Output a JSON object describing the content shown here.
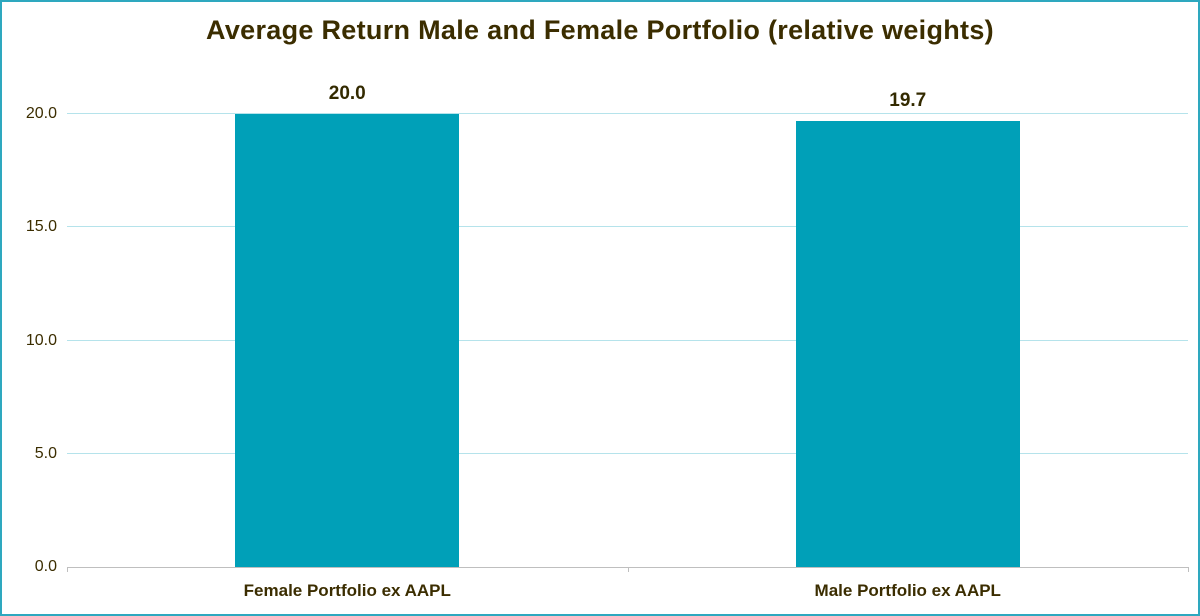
{
  "chart_data": {
    "type": "bar",
    "title": "Average Return Male and Female Portfolio (relative weights)",
    "categories": [
      "Female Portfolio ex AAPL",
      "Male Portfolio ex AAPL"
    ],
    "values": [
      20.0,
      19.7
    ],
    "data_labels": [
      "20.0",
      "19.7"
    ],
    "y_ticks": [
      0,
      5,
      10,
      15,
      20
    ],
    "y_tick_labels": [
      "0.0",
      "5.0",
      "10.0",
      "15.0",
      "20.0"
    ],
    "ylim": [
      0,
      20
    ],
    "grid": true,
    "legend_position": "none",
    "xlabel": "",
    "ylabel": "",
    "colors": {
      "bar": "#00A0B8",
      "gridline": "#B5E3EB",
      "axis": "#BFBFBF",
      "border": "#2EA8BF",
      "title_text": "#3B2D00",
      "tick_text": "#3B2D00",
      "data_label_text": "#332A00",
      "background": "#FFFFFF"
    }
  }
}
